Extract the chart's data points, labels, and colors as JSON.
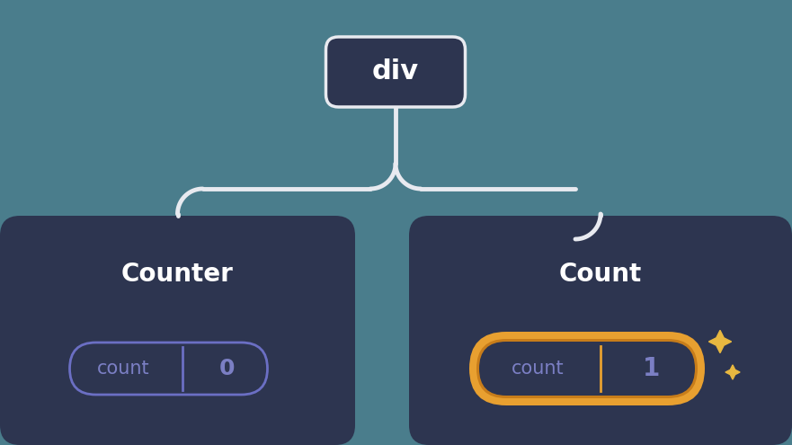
{
  "bg_color": "#4a7d8c",
  "node_bg_dark": "#2d3550",
  "connector_color": "#e8eaf0",
  "text_white": "#ffffff",
  "text_purple": "#7b7fc4",
  "pill_border_normal": "#6b6fc4",
  "pill_bg_normal": "#2d3550",
  "pill_divider_normal": "#6b6fc4",
  "pill_border_highlight_outer": "#c87d1a",
  "pill_border_highlight_inner": "#e8a030",
  "pill_divider_highlight": "#c87d1a",
  "sparkle_color": "#e8b840",
  "root_label": "div",
  "left_label": "Counter",
  "right_label": "Count",
  "left_state_key": "count",
  "left_state_val": "0",
  "right_state_key": "count",
  "right_state_val": "1",
  "fig_width": 8.81,
  "fig_height": 4.95
}
